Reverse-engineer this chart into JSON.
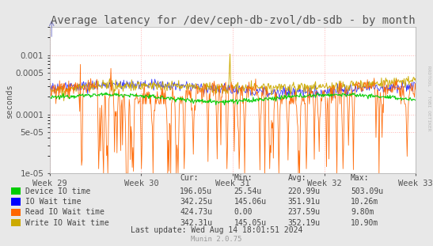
{
  "title": "Average latency for /dev/ceph-db-zvol/db-sdb - by month",
  "ylabel": "seconds",
  "background_color": "#e8e8e8",
  "plot_bg_color": "#ffffff",
  "grid_color": "#ffaaaa",
  "x_tick_labels": [
    "Week 29",
    "Week 30",
    "Week 31",
    "Week 32",
    "Week 33"
  ],
  "ylim_min": 1e-05,
  "ylim_max": 0.003,
  "legend_items": [
    {
      "label": "Device IO time",
      "color": "#00cc00"
    },
    {
      "label": "IO Wait time",
      "color": "#0000ff"
    },
    {
      "label": "Read IO Wait time",
      "color": "#ff6600"
    },
    {
      "label": "Write IO Wait time",
      "color": "#ccaa00"
    }
  ],
  "legend_table": {
    "headers": [
      "Cur:",
      "Min:",
      "Avg:",
      "Max:"
    ],
    "rows": [
      [
        "196.05u",
        "25.54u",
        "220.99u",
        "503.09u"
      ],
      [
        "342.25u",
        "145.06u",
        "351.91u",
        "10.26m"
      ],
      [
        "424.73u",
        "0.00",
        "237.59u",
        "9.80m"
      ],
      [
        "342.31u",
        "145.05u",
        "352.19u",
        "10.90m"
      ]
    ]
  },
  "watermark": "RRDTOOL / TOBI OETIKER",
  "munin_version": "Munin 2.0.75",
  "last_update": "Last update: Wed Aug 14 18:01:51 2024",
  "title_fontsize": 10,
  "axis_fontsize": 7.5,
  "legend_fontsize": 7
}
